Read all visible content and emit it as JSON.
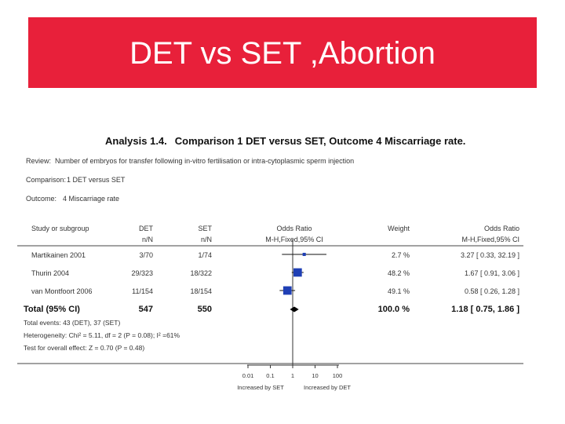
{
  "slide": {
    "title": "DET vs SET ,Abortion"
  },
  "analysis": {
    "number": "Analysis 1.4.",
    "title": "Comparison 1 DET versus SET, Outcome 4 Miscarriage rate."
  },
  "meta": [
    {
      "key": "Review:",
      "value": "Number of embryos for transfer following in-vitro fertilisation or intra-cytoplasmic sperm injection"
    },
    {
      "key": "Comparison:",
      "value": "1 DET versus SET"
    },
    {
      "key": "Outcome:",
      "value": "4 Miscarriage rate"
    }
  ],
  "columns": {
    "study": "Study or subgroup",
    "det": "DET",
    "det_sub": "n/N",
    "set": "SET",
    "set_sub": "n/N",
    "or_plot": "Odds Ratio",
    "or_plot_sub": "M-H,Fixed,95% CI",
    "weight": "Weight",
    "or": "Odds Ratio",
    "or_sub": "M-H,Fixed,95% CI"
  },
  "chart_data": {
    "type": "forest",
    "scale": "log",
    "xlim": [
      0.01,
      100
    ],
    "ticks": [
      "0.01",
      "0.1",
      "1",
      "10",
      "100"
    ],
    "tick_values": [
      0.01,
      0.1,
      1,
      10,
      100
    ],
    "left_label": "Increased by SET",
    "right_label": "Increased by DET",
    "studies": [
      {
        "name": "Martikainen 2001",
        "det": "3/70",
        "set": "1/74",
        "weight": "2.7 %",
        "or_text": "3.27 [ 0.33, 32.19 ]",
        "or": 3.27,
        "lo": 0.33,
        "hi": 32.19,
        "w": 2.7
      },
      {
        "name": "Thurin 2004",
        "det": "29/323",
        "set": "18/322",
        "weight": "48.2 %",
        "or_text": "1.67 [ 0.91, 3.06 ]",
        "or": 1.67,
        "lo": 0.91,
        "hi": 3.06,
        "w": 48.2
      },
      {
        "name": "van Montfoort 2006",
        "det": "11/154",
        "set": "18/154",
        "weight": "49.1 %",
        "or_text": "0.58 [ 0.26, 1.28 ]",
        "or": 0.58,
        "lo": 0.26,
        "hi": 1.28,
        "w": 49.1
      }
    ],
    "total": {
      "name": "Total (95% CI)",
      "det": "547",
      "set": "550",
      "weight": "100.0 %",
      "or_text": "1.18 [ 0.75, 1.86 ]",
      "or": 1.18,
      "lo": 0.75,
      "hi": 1.86
    },
    "footer": [
      "Total events: 43 (DET), 37 (SET)",
      "Heterogeneity: Chi² = 5.11, df = 2 (P = 0.08); I² =61%",
      "Test for overall effect: Z = 0.70 (P = 0.48)"
    ],
    "colors": {
      "study_marker": "#1f3fb5",
      "total_marker": "#000000"
    }
  }
}
